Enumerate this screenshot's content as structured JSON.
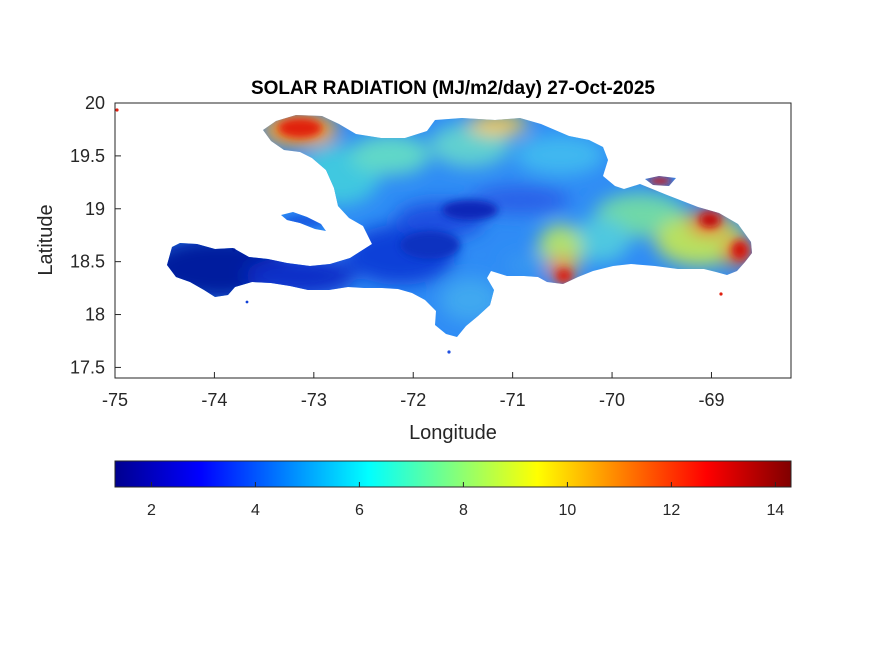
{
  "title": "SOLAR RADIATION (MJ/m2/day) 27-Oct-2025",
  "map": {
    "xlabel": "Longitude",
    "ylabel": "Latitude",
    "xlim": [
      -75,
      -68.2
    ],
    "ylim": [
      17.4,
      20
    ],
    "xticks": [
      -75,
      -74,
      -73,
      -72,
      -71,
      -70,
      -69
    ],
    "yticks": [
      17.5,
      18,
      18.5,
      19,
      19.5,
      20
    ],
    "xtick_labels": [
      "-75",
      "-74",
      "-73",
      "-72",
      "-71",
      "-70",
      "-69"
    ],
    "ytick_labels": [
      "17.5",
      "18",
      "18.5",
      "19",
      "19.5",
      "20"
    ],
    "region": "Hispaniola",
    "background": "#ffffff"
  },
  "colorbar": {
    "colormap": "jet",
    "range": [
      1.3,
      14.3
    ],
    "ticks": [
      2,
      4,
      6,
      8,
      10,
      12,
      14
    ],
    "tick_labels": [
      "2",
      "4",
      "6",
      "8",
      "10",
      "12",
      "14"
    ],
    "orientation": "horizontal",
    "placement": "below"
  }
}
